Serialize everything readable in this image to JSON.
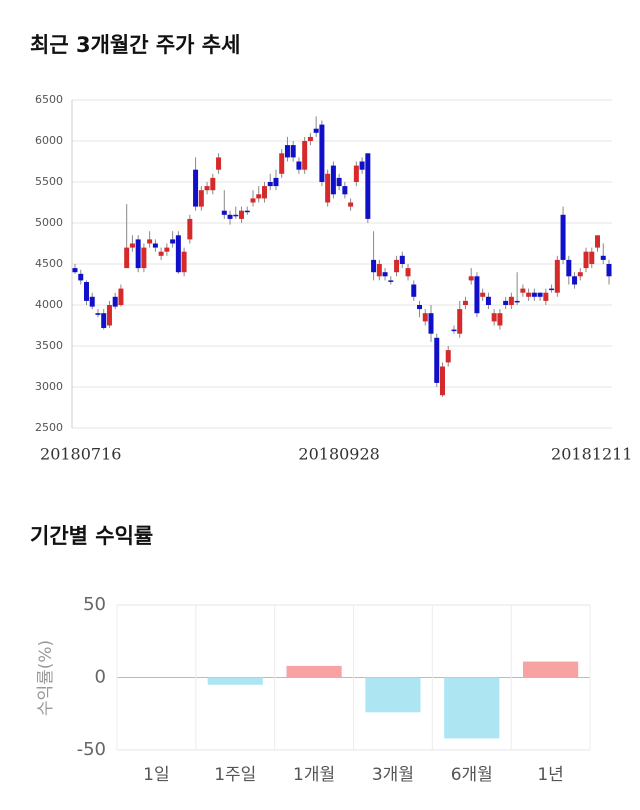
{
  "charts": [
    {
      "type": "candlestick",
      "title": "최근 3개월간 주가 추세",
      "up_color": "#d62a2a",
      "down_color": "#1010c8",
      "ylim": [
        2500,
        6500
      ],
      "yticks": [
        2500,
        3000,
        3500,
        4000,
        4500,
        5000,
        5500,
        6000,
        6500
      ],
      "grid": true,
      "categories": [
        null,
        "20180716",
        null,
        null,
        null,
        null,
        null,
        null,
        null,
        null,
        null,
        null,
        null,
        null,
        null,
        null,
        null,
        null,
        null,
        null,
        null,
        null,
        null,
        null,
        null,
        null,
        null,
        null,
        null,
        null,
        null,
        null,
        null,
        null,
        null,
        null,
        null,
        null,
        null,
        null,
        null,
        null,
        null,
        null,
        null,
        null,
        "20180928",
        null,
        null,
        null,
        null,
        null,
        null,
        null,
        null,
        null,
        null,
        null,
        null,
        null,
        null,
        null,
        null,
        null,
        null,
        null,
        null,
        null,
        null,
        null,
        null,
        null,
        null,
        null,
        null,
        null,
        null,
        null,
        null,
        null,
        null,
        null,
        null,
        null,
        null,
        null,
        null,
        null,
        null,
        null,
        "20181211",
        null,
        null,
        null
      ],
      "open": [
        4450,
        4380,
        4280,
        4100,
        3900,
        3900,
        3750,
        4100,
        4000,
        4450,
        4700,
        4800,
        4450,
        4750,
        4750,
        4600,
        4650,
        4800,
        4850,
        4400,
        4800,
        5650,
        5200,
        5400,
        5400,
        5650,
        5150,
        5100,
        5100,
        5050,
        5150,
        5250,
        5300,
        5300,
        5500,
        5550,
        5600,
        5950,
        5950,
        5750,
        5650,
        6000,
        6150,
        6200,
        5250,
        5700,
        5550,
        5450,
        5200,
        5500,
        5750,
        5850,
        4550,
        4350,
        4400,
        4300,
        4400,
        4600,
        4350,
        4250,
        4000,
        3800,
        3900,
        3600,
        2900,
        3300,
        3700,
        3650,
        4000,
        4300,
        4350,
        4100,
        4100,
        3800,
        3750,
        4050,
        4000,
        4050,
        4150,
        4100,
        4150,
        4150,
        4050,
        4200,
        4150,
        5100,
        4550,
        4350,
        4350,
        4450,
        4500,
        4700,
        4600,
        4500
      ],
      "high": [
        4500,
        4430,
        4300,
        4150,
        3950,
        3950,
        4050,
        4150,
        4250,
        5230,
        4850,
        4850,
        4750,
        4900,
        4800,
        4700,
        4750,
        4900,
        4900,
        4700,
        5100,
        5800,
        5450,
        5500,
        5600,
        5850,
        5400,
        5150,
        5200,
        5200,
        5200,
        5400,
        5450,
        5500,
        5600,
        5650,
        5900,
        6050,
        6000,
        5800,
        6050,
        6100,
        6300,
        6250,
        5650,
        5750,
        5600,
        5500,
        5300,
        5750,
        5800,
        5850,
        4900,
        4550,
        4450,
        4350,
        4600,
        4650,
        4500,
        4300,
        4050,
        3950,
        4000,
        3650,
        3300,
        3500,
        3750,
        4050,
        4100,
        4450,
        4400,
        4200,
        4150,
        3950,
        3950,
        4100,
        4150,
        4400,
        4250,
        4200,
        4200,
        4150,
        4200,
        4250,
        4600,
        5200,
        4600,
        4400,
        4450,
        4700,
        4700,
        4850,
        4750,
        4550
      ],
      "low": [
        4380,
        4250,
        4000,
        3950,
        3850,
        3700,
        3720,
        3950,
        3980,
        4450,
        4650,
        4400,
        4400,
        4700,
        4650,
        4550,
        4600,
        4700,
        4380,
        4350,
        4750,
        5150,
        5150,
        5350,
        5350,
        5600,
        5050,
        4980,
        5050,
        5000,
        5100,
        5200,
        5250,
        5250,
        5400,
        5400,
        5550,
        5750,
        5750,
        5600,
        5600,
        5950,
        6050,
        5450,
        5200,
        5300,
        5400,
        5300,
        5150,
        5450,
        5600,
        5000,
        4300,
        4300,
        4300,
        4250,
        4350,
        4450,
        4300,
        4050,
        3850,
        3750,
        3550,
        3000,
        2880,
        3250,
        3650,
        3600,
        3950,
        4250,
        3850,
        4050,
        3950,
        3750,
        3700,
        3950,
        3950,
        4000,
        4100,
        4050,
        4050,
        4050,
        4000,
        4150,
        4100,
        4500,
        4250,
        4200,
        4300,
        4400,
        4450,
        4650,
        4500,
        4250
      ],
      "close": [
        4400,
        4300,
        4050,
        3980,
        3880,
        3720,
        4000,
        3980,
        4200,
        4700,
        4750,
        4450,
        4700,
        4800,
        4700,
        4650,
        4700,
        4750,
        4400,
        4650,
        5050,
        5200,
        5400,
        5450,
        5550,
        5800,
        5100,
        5050,
        5100,
        5150,
        5150,
        5300,
        5350,
        5450,
        5450,
        5450,
        5850,
        5800,
        5800,
        5650,
        6000,
        6050,
        6100,
        5500,
        5600,
        5350,
        5450,
        5350,
        5250,
        5700,
        5650,
        5050,
        4400,
        4500,
        4350,
        4300,
        4550,
        4500,
        4450,
        4100,
        3950,
        3900,
        3650,
        3050,
        3250,
        3450,
        3700,
        3950,
        4050,
        4350,
        3900,
        4150,
        4000,
        3900,
        3900,
        4000,
        4100,
        4050,
        4200,
        4150,
        4100,
        4100,
        4150,
        4200,
        4550,
        4550,
        4350,
        4250,
        4400,
        4650,
        4650,
        4850,
        4550,
        4350
      ]
    },
    {
      "type": "bar",
      "title": "기간별 수익률",
      "ylabel": "수익률(%)",
      "categories": [
        "1일",
        "1주일",
        "1개월",
        "3개월",
        "6개월",
        "1년"
      ],
      "values": [
        0,
        -5,
        8,
        -24,
        -42,
        11
      ],
      "positive_color": "#f7a3a3",
      "negative_color": "#ade6f2",
      "ylim": [
        -50,
        50
      ],
      "yticks": [
        -50,
        0,
        50
      ],
      "grid": true
    }
  ]
}
